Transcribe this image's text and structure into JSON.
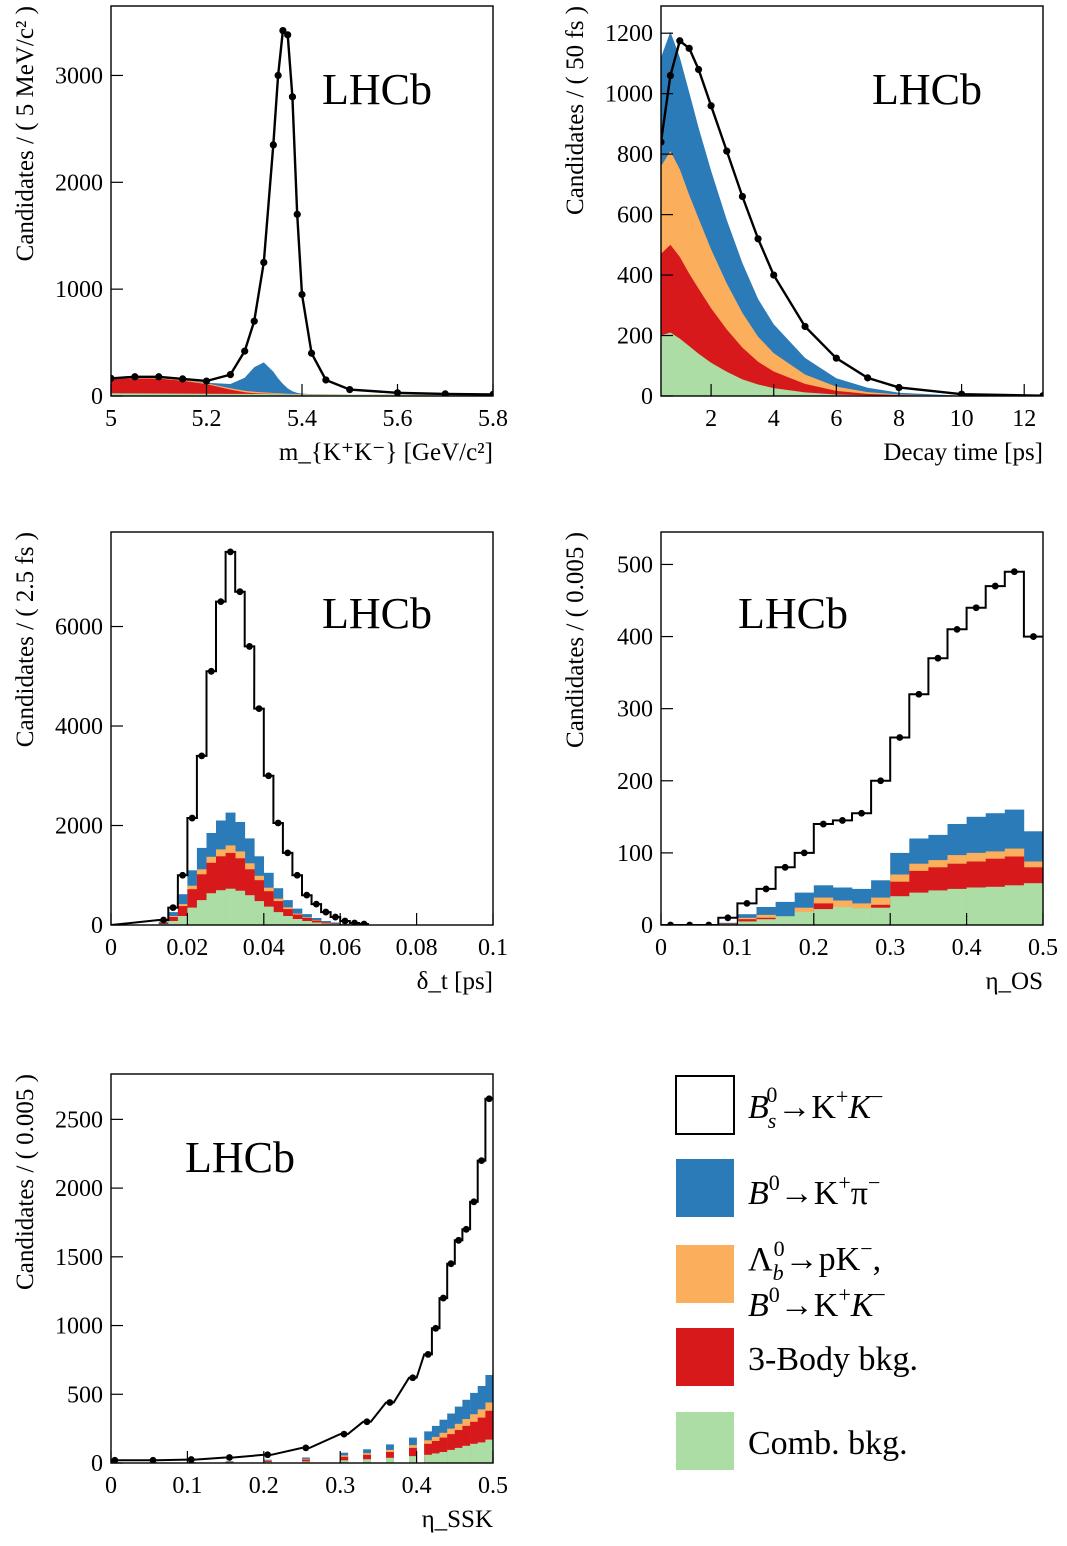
{
  "colors": {
    "signal": "#ffffff",
    "b0kpi": "#2b7bb9",
    "lambda": "#fbae5c",
    "threebody": "#d7191c",
    "comb": "#abdda4",
    "data": "#000000"
  },
  "legend": {
    "signal": [
      "B",
      "s",
      "0",
      "→K",
      "+",
      "K",
      "−"
    ],
    "b0kpi": [
      "B",
      "0",
      "→K",
      "+",
      "π",
      "−"
    ],
    "lambda_line1": [
      "Λ",
      "b",
      "0",
      "→pK",
      "−",
      ","
    ],
    "lambda_line2": [
      "B",
      "0",
      "→K",
      "+",
      "K",
      "−"
    ],
    "threebody": "3-Body bkg.",
    "comb": "Comb. bkg."
  },
  "chart_data": [
    {
      "id": "mass",
      "type": "area",
      "watermark": "LHCb",
      "ylabel": "Candidates / ( 5 MeV/c² )",
      "xlabel": "m_{K⁺K⁻} [GeV/c²]",
      "xlim": [
        5.0,
        5.8
      ],
      "ylim": [
        0,
        3650
      ],
      "xticks": [
        "5",
        "5.2",
        "5.4",
        "5.6",
        "5.8"
      ],
      "yticks": [
        "0",
        "1000",
        "2000",
        "3000"
      ],
      "x": [
        5.0,
        5.05,
        5.1,
        5.15,
        5.2,
        5.25,
        5.28,
        5.3,
        5.32,
        5.34,
        5.35,
        5.36,
        5.37,
        5.38,
        5.39,
        5.4,
        5.42,
        5.45,
        5.5,
        5.6,
        5.7,
        5.8
      ],
      "series": [
        {
          "name": "Comb. bkg.",
          "values": [
            25,
            24,
            23,
            22,
            21,
            20,
            20,
            19,
            19,
            18,
            18,
            18,
            17,
            17,
            17,
            16,
            16,
            15,
            14,
            12,
            10,
            9
          ]
        },
        {
          "name": "3-Body bkg.",
          "values": [
            130,
            140,
            140,
            120,
            90,
            40,
            15,
            6,
            3,
            2,
            1,
            0,
            0,
            0,
            0,
            0,
            0,
            0,
            0,
            0,
            0,
            0
          ]
        },
        {
          "name": "Λb0→pK−, B0→K+K−",
          "values": [
            8,
            8,
            8,
            8,
            8,
            12,
            15,
            15,
            12,
            8,
            6,
            5,
            4,
            3,
            2,
            1,
            0,
            0,
            0,
            0,
            0,
            0
          ]
        },
        {
          "name": "B0→K+π−",
          "values": [
            0,
            0,
            0,
            0,
            5,
            40,
            120,
            230,
            280,
            200,
            140,
            90,
            50,
            25,
            10,
            5,
            2,
            0,
            0,
            0,
            0,
            0
          ]
        },
        {
          "name": "Total",
          "values": [
            165,
            180,
            180,
            160,
            140,
            200,
            420,
            700,
            1250,
            2350,
            3000,
            3420,
            3380,
            2800,
            1700,
            950,
            400,
            150,
            60,
            30,
            20,
            15
          ]
        }
      ]
    },
    {
      "id": "time",
      "type": "area",
      "watermark": "LHCb",
      "ylabel": "Candidates / ( 50 fs )",
      "xlabel": "Decay time [ps]",
      "xlim": [
        0.4,
        12.6
      ],
      "ylim": [
        0,
        1290
      ],
      "xticks": [
        "2",
        "4",
        "6",
        "8",
        "10",
        "12"
      ],
      "yticks": [
        "0",
        "200",
        "400",
        "600",
        "800",
        "1000",
        "1200"
      ],
      "x": [
        0.4,
        0.7,
        1.0,
        1.3,
        1.6,
        2.0,
        2.5,
        3.0,
        3.5,
        4.0,
        5.0,
        6.0,
        7.0,
        8.0,
        10.0,
        12.6
      ],
      "series": [
        {
          "name": "Comb. bkg.",
          "values": [
            200,
            210,
            190,
            165,
            140,
            110,
            80,
            55,
            38,
            26,
            12,
            5,
            2,
            1,
            0,
            0
          ]
        },
        {
          "name": "3-Body bkg.",
          "values": [
            270,
            290,
            270,
            240,
            215,
            180,
            140,
            105,
            75,
            55,
            28,
            12,
            5,
            2,
            0,
            0
          ]
        },
        {
          "name": "Λb0→pK−, B0→K+K−",
          "values": [
            290,
            310,
            290,
            260,
            232,
            195,
            152,
            115,
            83,
            61,
            31,
            14,
            6,
            2,
            0,
            0
          ]
        },
        {
          "name": "B0→K+π−",
          "values": [
            360,
            395,
            370,
            340,
            300,
            260,
            210,
            165,
            125,
            95,
            55,
            28,
            14,
            6,
            1,
            0
          ]
        },
        {
          "name": "Total",
          "values": [
            840,
            1060,
            1175,
            1150,
            1080,
            960,
            810,
            660,
            520,
            400,
            230,
            125,
            60,
            28,
            6,
            1
          ]
        }
      ]
    },
    {
      "id": "deltat",
      "type": "bar",
      "watermark": "LHCb",
      "ylabel": "Candidates / ( 2.5 fs )",
      "xlabel": "δ_t [ps]",
      "xlim": [
        0,
        0.1
      ],
      "ylim": [
        0,
        7900
      ],
      "xticks": [
        "0",
        "0.02",
        "0.04",
        "0.06",
        "0.08",
        "0.1"
      ],
      "yticks": [
        "0",
        "2000",
        "4000",
        "6000"
      ],
      "bin_width": 0.0025,
      "x": [
        0.0125,
        0.015,
        0.0175,
        0.02,
        0.0225,
        0.025,
        0.0275,
        0.03,
        0.0325,
        0.035,
        0.0375,
        0.04,
        0.0425,
        0.045,
        0.0475,
        0.05,
        0.0525,
        0.055,
        0.0575,
        0.06,
        0.0625,
        0.065
      ],
      "series": [
        {
          "name": "Comb. bkg.",
          "values": [
            20,
            80,
            180,
            350,
            500,
            640,
            700,
            730,
            690,
            600,
            480,
            370,
            260,
            180,
            120,
            80,
            50,
            30,
            20,
            10,
            5,
            2
          ]
        },
        {
          "name": "3-Body bkg.",
          "values": [
            40,
            160,
            380,
            720,
            1020,
            1250,
            1380,
            1450,
            1340,
            1120,
            900,
            680,
            480,
            320,
            210,
            140,
            90,
            50,
            30,
            15,
            8,
            3
          ]
        },
        {
          "name": "Λb0→pK−, B0→K+K−",
          "values": [
            45,
            180,
            420,
            790,
            1120,
            1370,
            1520,
            1600,
            1480,
            1240,
            990,
            750,
            530,
            355,
            230,
            155,
            100,
            55,
            33,
            17,
            9,
            4
          ]
        },
        {
          "name": "B0→K+π−",
          "values": [
            70,
            260,
            620,
            1100,
            1550,
            1850,
            2100,
            2260,
            2070,
            1740,
            1380,
            1050,
            740,
            500,
            330,
            220,
            140,
            80,
            50,
            25,
            12,
            5
          ]
        },
        {
          "name": "Total",
          "values": [
            100,
            350,
            1000,
            2150,
            3400,
            5100,
            6500,
            7500,
            6700,
            5600,
            4350,
            3000,
            2050,
            1450,
            1000,
            600,
            420,
            260,
            160,
            80,
            40,
            20
          ]
        }
      ]
    },
    {
      "id": "etaos",
      "type": "bar",
      "watermark": "LHCb",
      "ylabel": "Candidates / ( 0.005 )",
      "xlabel": "η_OS",
      "xlim": [
        0,
        0.5
      ],
      "ylim": [
        0,
        545
      ],
      "xticks": [
        "0",
        "0.1",
        "0.2",
        "0.3",
        "0.4",
        "0.5"
      ],
      "yticks": [
        "0",
        "100",
        "200",
        "300",
        "400",
        "500"
      ],
      "bin_width": 0.025,
      "x": [
        0.0,
        0.025,
        0.05,
        0.075,
        0.1,
        0.125,
        0.15,
        0.175,
        0.2,
        0.225,
        0.25,
        0.275,
        0.3,
        0.325,
        0.35,
        0.375,
        0.4,
        0.425,
        0.45,
        0.475
      ],
      "series": [
        {
          "name": "Comb. bkg.",
          "values": [
            0,
            0,
            0,
            1,
            5,
            8,
            12,
            18,
            22,
            25,
            23,
            24,
            40,
            45,
            48,
            50,
            52,
            53,
            55,
            58
          ]
        },
        {
          "name": "3-Body bkg.",
          "values": [
            0,
            0,
            0,
            2,
            8,
            10,
            6,
            18,
            30,
            22,
            15,
            28,
            60,
            75,
            80,
            85,
            88,
            92,
            95,
            80
          ]
        },
        {
          "name": "Λb0→pK−, B0→K+K−",
          "values": [
            0,
            0,
            0,
            2,
            10,
            14,
            12,
            24,
            38,
            34,
            30,
            38,
            70,
            85,
            90,
            97,
            100,
            102,
            106,
            88
          ]
        },
        {
          "name": "B0→K+π−",
          "values": [
            0,
            0,
            0,
            3,
            15,
            25,
            32,
            45,
            55,
            52,
            50,
            62,
            100,
            120,
            125,
            140,
            150,
            155,
            160,
            130
          ]
        },
        {
          "name": "Total",
          "values": [
            0,
            0,
            0,
            10,
            30,
            50,
            80,
            100,
            140,
            145,
            155,
            200,
            260,
            320,
            370,
            410,
            440,
            470,
            490,
            400
          ]
        }
      ]
    },
    {
      "id": "etassk",
      "type": "bar",
      "watermark": "LHCb",
      "ylabel": "Candidates / ( 0.005 )",
      "xlabel": "η_SSK",
      "xlim": [
        0,
        0.5
      ],
      "ylim": [
        0,
        2830
      ],
      "xticks": [
        "0",
        "0.1",
        "0.2",
        "0.3",
        "0.4",
        "0.5"
      ],
      "yticks": [
        "0",
        "500",
        "1000",
        "1500",
        "2000",
        "2500"
      ],
      "bin_width": 0.01,
      "x": [
        0.0,
        0.05,
        0.1,
        0.15,
        0.2,
        0.25,
        0.3,
        0.33,
        0.36,
        0.39,
        0.41,
        0.42,
        0.43,
        0.44,
        0.45,
        0.46,
        0.47,
        0.48,
        0.49
      ],
      "series": [
        {
          "name": "Comb. bkg.",
          "values": [
            2,
            2,
            3,
            5,
            8,
            12,
            20,
            28,
            38,
            50,
            60,
            70,
            80,
            95,
            110,
            125,
            140,
            150,
            170
          ]
        },
        {
          "name": "3-Body bkg.",
          "values": [
            3,
            3,
            5,
            8,
            15,
            25,
            45,
            60,
            80,
            110,
            140,
            160,
            185,
            210,
            240,
            270,
            300,
            330,
            380
          ]
        },
        {
          "name": "Λb0→pK−, B0→K+K−",
          "values": [
            4,
            4,
            6,
            10,
            18,
            30,
            55,
            72,
            95,
            130,
            165,
            190,
            220,
            250,
            285,
            320,
            355,
            390,
            440
          ]
        },
        {
          "name": "B0→K+π−",
          "values": [
            5,
            5,
            8,
            14,
            24,
            40,
            75,
            100,
            135,
            185,
            230,
            270,
            315,
            360,
            410,
            460,
            510,
            560,
            640
          ]
        },
        {
          "name": "Total",
          "values": [
            20,
            20,
            25,
            40,
            60,
            110,
            210,
            300,
            440,
            620,
            790,
            980,
            1200,
            1450,
            1620,
            1700,
            1900,
            2200,
            2650
          ]
        }
      ]
    }
  ]
}
